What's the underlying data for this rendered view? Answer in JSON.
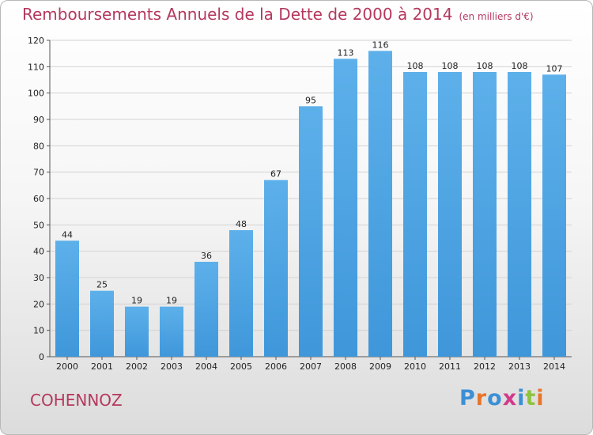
{
  "chart_data": {
    "type": "bar",
    "title": "Remboursements Annuels de la Dette de 2000 à 2014",
    "subtitle": "(en milliers d'€)",
    "categories": [
      "2000",
      "2001",
      "2002",
      "2003",
      "2004",
      "2005",
      "2006",
      "2007",
      "2008",
      "2009",
      "2010",
      "2011",
      "2012",
      "2013",
      "2014"
    ],
    "values": [
      44,
      25,
      19,
      19,
      36,
      48,
      67,
      95,
      113,
      116,
      108,
      108,
      108,
      108,
      107
    ],
    "ylim": [
      0,
      120
    ],
    "yticks": [
      0,
      10,
      20,
      30,
      40,
      50,
      60,
      70,
      80,
      90,
      100,
      110,
      120
    ],
    "grid": true,
    "bar_color": "#3f97da",
    "data_labels": true
  },
  "footer": {
    "place": "COHENNOZ"
  },
  "logo": {
    "text": "Proxiti",
    "colors": [
      "#3b8fd6",
      "#e8742a",
      "#3b8fd6",
      "#d13b8a",
      "#3b8fd6",
      "#8fc33f",
      "#e8742a"
    ]
  }
}
